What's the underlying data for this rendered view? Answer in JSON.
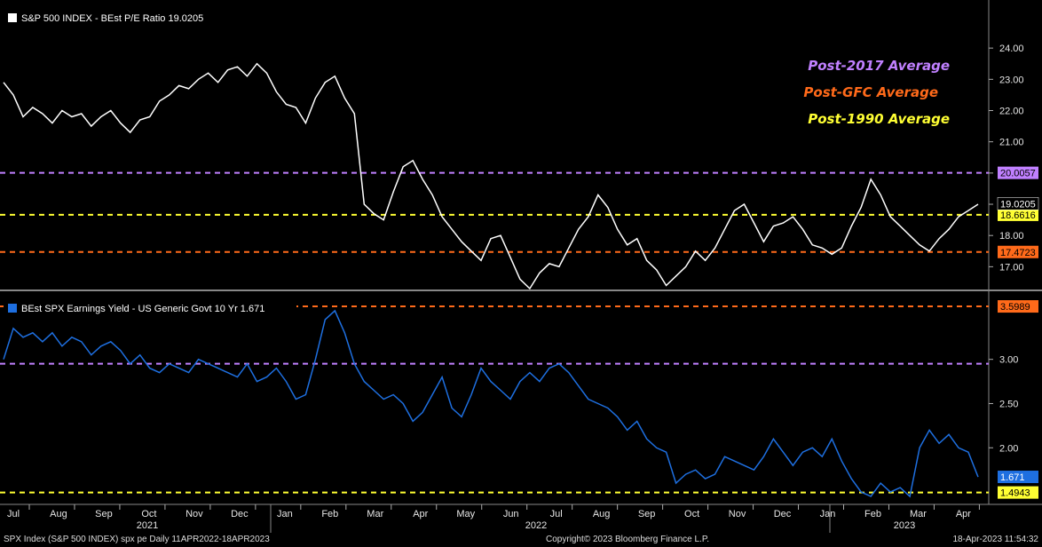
{
  "footer": {
    "left": "SPX Index (S&P 500 INDEX) spx pe  Daily 11APR2022-18APR2023",
    "center": "Copyright© 2023 Bloomberg Finance L.P.",
    "right": "18-Apr-2023 11:54:32"
  },
  "colors": {
    "background": "#000000",
    "pe_line": "#ffffff",
    "yield_line": "#1e6fe0",
    "post2017": "#c080ff",
    "postgfc": "#ff6a1a",
    "post1990": "#ffff33"
  },
  "chart_data": [
    {
      "type": "line",
      "legend": "S&P 500 INDEX - BEst P/E Ratio 19.0205",
      "ylim": [
        16.3,
        24.8
      ],
      "yticks": [
        "24.00",
        "23.00",
        "22.00",
        "21.00",
        "20.00",
        "19.00",
        "18.00",
        "17.00"
      ],
      "grid": false,
      "legend_placement": "top-left",
      "annotations": [
        {
          "text": "Post-2017 Average",
          "color": "#c080ff"
        },
        {
          "text": "Post-GFC Average",
          "color": "#ff6a1a"
        },
        {
          "text": "Post-1990 Average",
          "color": "#ffff33"
        }
      ],
      "reference_lines": [
        {
          "value": 20.0057,
          "label": "20.0057",
          "color": "#c080ff"
        },
        {
          "value": 18.6616,
          "label": "18.6616",
          "color": "#ffff33"
        },
        {
          "value": 17.4723,
          "label": "17.4723",
          "color": "#ff6a1a"
        }
      ],
      "last_value": {
        "value": 19.0205,
        "label": "19.0205"
      },
      "series": [
        {
          "values": [
            22.9,
            22.5,
            21.8,
            22.1,
            21.9,
            21.6,
            22.0,
            21.8,
            21.9,
            21.5,
            21.8,
            22.0,
            21.6,
            21.3,
            21.7,
            21.8,
            22.3,
            22.5,
            22.8,
            22.7,
            23.0,
            23.2,
            22.9,
            23.3,
            23.4,
            23.1,
            23.5,
            23.2,
            22.6,
            22.2,
            22.1,
            21.6,
            22.4,
            22.9,
            23.1,
            22.4,
            21.9,
            19.0,
            18.7,
            18.5,
            19.4,
            20.2,
            20.4,
            19.8,
            19.3,
            18.6,
            18.2,
            17.8,
            17.5,
            17.2,
            17.9,
            18.0,
            17.3,
            16.6,
            16.3,
            16.8,
            17.1,
            17.0,
            17.6,
            18.2,
            18.6,
            19.3,
            18.9,
            18.2,
            17.7,
            17.9,
            17.2,
            16.9,
            16.4,
            16.7,
            17.0,
            17.5,
            17.2,
            17.6,
            18.2,
            18.8,
            19.0,
            18.4,
            17.8,
            18.3,
            18.4,
            18.6,
            18.2,
            17.7,
            17.6,
            17.4,
            17.6,
            18.3,
            18.9,
            19.8,
            19.3,
            18.6,
            18.3,
            18.0,
            17.7,
            17.5,
            17.9,
            18.2,
            18.6,
            18.8,
            19.0
          ]
        }
      ]
    },
    {
      "type": "line",
      "legend": "BEst SPX Earnings Yield - US Generic Govt 10 Yr 1.671",
      "ylim": [
        1.38,
        3.72
      ],
      "yticks": [
        "3.00",
        "2.50",
        "2.00"
      ],
      "grid": false,
      "legend_placement": "top-left",
      "reference_lines": [
        {
          "value": 3.5989,
          "label": "3.5989",
          "color": "#ff6a1a"
        },
        {
          "value": 2.95,
          "label": "",
          "color": "#c080ff"
        },
        {
          "value": 1.4943,
          "label": "1.4943",
          "color": "#ffff33"
        }
      ],
      "last_value": {
        "value": 1.671,
        "label": "1.671"
      },
      "series": [
        {
          "values": [
            3.0,
            3.35,
            3.25,
            3.3,
            3.2,
            3.3,
            3.15,
            3.25,
            3.2,
            3.05,
            3.15,
            3.2,
            3.1,
            2.95,
            3.05,
            2.9,
            2.85,
            2.95,
            2.9,
            2.85,
            3.0,
            2.95,
            2.9,
            2.85,
            2.8,
            2.95,
            2.75,
            2.8,
            2.9,
            2.75,
            2.55,
            2.6,
            3.0,
            3.45,
            3.55,
            3.3,
            2.95,
            2.75,
            2.65,
            2.55,
            2.6,
            2.5,
            2.3,
            2.4,
            2.6,
            2.8,
            2.45,
            2.35,
            2.6,
            2.9,
            2.75,
            2.65,
            2.55,
            2.75,
            2.85,
            2.75,
            2.9,
            2.95,
            2.85,
            2.7,
            2.55,
            2.5,
            2.45,
            2.35,
            2.2,
            2.3,
            2.1,
            2.0,
            1.95,
            1.6,
            1.7,
            1.75,
            1.65,
            1.7,
            1.9,
            1.85,
            1.8,
            1.75,
            1.9,
            2.1,
            1.95,
            1.8,
            1.95,
            2.0,
            1.9,
            2.1,
            1.85,
            1.65,
            1.5,
            1.45,
            1.6,
            1.5,
            1.55,
            1.45,
            2.0,
            2.2,
            2.05,
            2.15,
            2.0,
            1.95,
            1.67
          ]
        }
      ]
    },
    {
      "type": "axis",
      "month_ticks": [
        "Jul",
        "Aug",
        "Sep",
        "Oct",
        "Nov",
        "Dec",
        "Jan",
        "Feb",
        "Mar",
        "Apr",
        "May",
        "Jun",
        "Jul",
        "Aug",
        "Sep",
        "Oct",
        "Nov",
        "Dec",
        "Jan",
        "Feb",
        "Mar",
        "Apr"
      ],
      "year_labels": [
        "2021",
        "2022",
        "2023"
      ]
    }
  ]
}
